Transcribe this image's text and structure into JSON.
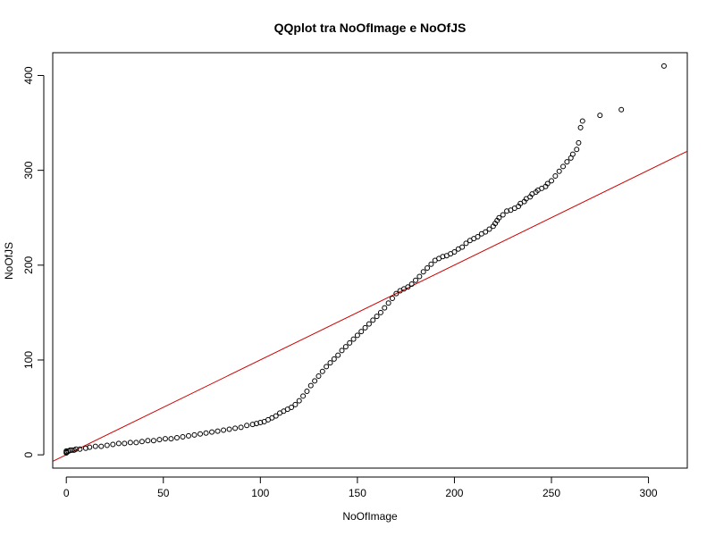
{
  "chart_data": {
    "type": "scatter",
    "title": "QQplot tra NoOfImage e NoOfJS",
    "xlabel": "NoOfImage",
    "ylabel": "NoOfJS",
    "xlim": [
      -7,
      320
    ],
    "ylim": [
      -14,
      424
    ],
    "xticks": [
      0,
      50,
      100,
      150,
      200,
      250,
      300
    ],
    "yticks": [
      0,
      100,
      200,
      300,
      400
    ],
    "grid": false,
    "point_color": "#000000",
    "line_color": "#cc0000",
    "reference_line": {
      "slope": 1.0,
      "intercept": 0.1
    },
    "series": [
      {
        "points": [
          [
            0,
            2
          ],
          [
            0,
            3
          ],
          [
            0,
            4
          ],
          [
            1,
            4
          ],
          [
            2,
            5
          ],
          [
            3,
            5
          ],
          [
            4,
            5
          ],
          [
            5,
            6
          ],
          [
            7,
            6
          ],
          [
            10,
            7
          ],
          [
            12,
            8
          ],
          [
            15,
            9
          ],
          [
            18,
            9
          ],
          [
            21,
            10
          ],
          [
            24,
            11
          ],
          [
            27,
            12
          ],
          [
            30,
            12
          ],
          [
            33,
            13
          ],
          [
            36,
            13
          ],
          [
            39,
            14
          ],
          [
            42,
            15
          ],
          [
            45,
            15
          ],
          [
            48,
            16
          ],
          [
            51,
            17
          ],
          [
            54,
            17
          ],
          [
            57,
            18
          ],
          [
            60,
            19
          ],
          [
            63,
            20
          ],
          [
            66,
            21
          ],
          [
            69,
            22
          ],
          [
            72,
            23
          ],
          [
            75,
            24
          ],
          [
            78,
            25
          ],
          [
            81,
            26
          ],
          [
            84,
            27
          ],
          [
            87,
            28
          ],
          [
            90,
            29
          ],
          [
            93,
            31
          ],
          [
            96,
            32
          ],
          [
            98,
            33
          ],
          [
            100,
            34
          ],
          [
            102,
            35
          ],
          [
            104,
            37
          ],
          [
            106,
            39
          ],
          [
            108,
            41
          ],
          [
            110,
            44
          ],
          [
            112,
            46
          ],
          [
            114,
            48
          ],
          [
            116,
            50
          ],
          [
            118,
            53
          ],
          [
            120,
            57
          ],
          [
            122,
            62
          ],
          [
            124,
            67
          ],
          [
            126,
            73
          ],
          [
            128,
            78
          ],
          [
            130,
            83
          ],
          [
            132,
            88
          ],
          [
            134,
            93
          ],
          [
            136,
            97
          ],
          [
            138,
            101
          ],
          [
            140,
            105
          ],
          [
            142,
            110
          ],
          [
            144,
            114
          ],
          [
            146,
            118
          ],
          [
            148,
            122
          ],
          [
            150,
            126
          ],
          [
            152,
            130
          ],
          [
            154,
            134
          ],
          [
            156,
            138
          ],
          [
            158,
            142
          ],
          [
            160,
            146
          ],
          [
            162,
            150
          ],
          [
            164,
            155
          ],
          [
            166,
            160
          ],
          [
            168,
            165
          ],
          [
            170,
            170
          ],
          [
            172,
            173
          ],
          [
            174,
            175
          ],
          [
            176,
            177
          ],
          [
            178,
            180
          ],
          [
            180,
            184
          ],
          [
            182,
            188
          ],
          [
            184,
            193
          ],
          [
            186,
            197
          ],
          [
            188,
            201
          ],
          [
            190,
            205
          ],
          [
            192,
            207
          ],
          [
            194,
            209
          ],
          [
            196,
            210
          ],
          [
            198,
            212
          ],
          [
            200,
            214
          ],
          [
            202,
            217
          ],
          [
            204,
            219
          ],
          [
            206,
            223
          ],
          [
            208,
            226
          ],
          [
            210,
            228
          ],
          [
            212,
            230
          ],
          [
            214,
            233
          ],
          [
            216,
            235
          ],
          [
            218,
            238
          ],
          [
            220,
            241
          ],
          [
            221,
            244
          ],
          [
            222,
            247
          ],
          [
            223,
            250
          ],
          [
            225,
            253
          ],
          [
            227,
            257
          ],
          [
            229,
            258
          ],
          [
            231,
            260
          ],
          [
            233,
            262
          ],
          [
            234,
            265
          ],
          [
            236,
            267
          ],
          [
            237,
            270
          ],
          [
            239,
            272
          ],
          [
            240,
            275
          ],
          [
            242,
            277
          ],
          [
            243,
            279
          ],
          [
            245,
            281
          ],
          [
            247,
            283
          ],
          [
            248,
            286
          ],
          [
            250,
            289
          ],
          [
            252,
            294
          ],
          [
            254,
            299
          ],
          [
            256,
            304
          ],
          [
            258,
            309
          ],
          [
            260,
            313
          ],
          [
            261,
            317
          ],
          [
            263,
            322
          ],
          [
            264,
            329
          ],
          [
            265,
            345
          ],
          [
            266,
            352
          ],
          [
            275,
            358
          ],
          [
            286,
            364
          ],
          [
            308,
            410
          ]
        ]
      }
    ]
  }
}
